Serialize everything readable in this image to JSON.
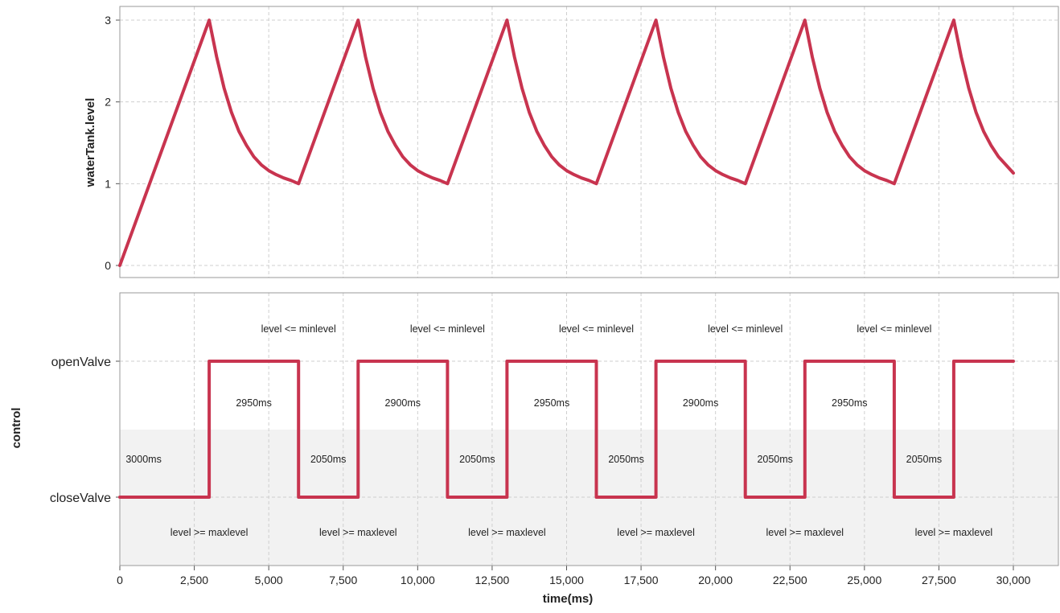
{
  "chart_data": [
    {
      "type": "line",
      "ylabel": "waterTank.level",
      "xlabel": "",
      "xlim": [
        0,
        30000
      ],
      "ylim": [
        0,
        3
      ],
      "yticks": [
        "0",
        "1",
        "2",
        "3"
      ],
      "grid": true,
      "series": [
        {
          "color": "#c8344f",
          "x": [
            0,
            3000,
            3250,
            3500,
            3750,
            4000,
            4250,
            4500,
            4750,
            5000,
            5250,
            5500,
            5750,
            6000,
            8000,
            8250,
            8500,
            8750,
            9000,
            9250,
            9500,
            9750,
            10000,
            10250,
            10500,
            10750,
            11000,
            13000,
            13250,
            13500,
            13750,
            14000,
            14250,
            14500,
            14750,
            15000,
            15250,
            15500,
            15750,
            16000,
            18000,
            18250,
            18500,
            18750,
            19000,
            19250,
            19500,
            19750,
            20000,
            20250,
            20500,
            20750,
            21000,
            23000,
            23250,
            23500,
            23750,
            24000,
            24250,
            24500,
            24750,
            25000,
            25250,
            25500,
            25750,
            26000,
            28000,
            28250,
            28500,
            28750,
            29000,
            29250,
            29500,
            29750,
            30000
          ],
          "y": [
            0,
            3.0,
            2.55,
            2.17,
            1.87,
            1.64,
            1.47,
            1.33,
            1.23,
            1.16,
            1.11,
            1.07,
            1.04,
            1.0,
            3.0,
            2.55,
            2.17,
            1.87,
            1.64,
            1.47,
            1.33,
            1.23,
            1.16,
            1.11,
            1.07,
            1.04,
            1.0,
            3.0,
            2.55,
            2.17,
            1.87,
            1.64,
            1.47,
            1.33,
            1.23,
            1.16,
            1.11,
            1.07,
            1.04,
            1.0,
            3.0,
            2.55,
            2.17,
            1.87,
            1.64,
            1.47,
            1.33,
            1.23,
            1.16,
            1.11,
            1.07,
            1.04,
            1.0,
            3.0,
            2.55,
            2.17,
            1.87,
            1.64,
            1.47,
            1.33,
            1.23,
            1.16,
            1.11,
            1.07,
            1.04,
            1.0,
            3.0,
            2.55,
            2.17,
            1.87,
            1.64,
            1.47,
            1.33,
            1.23,
            1.13
          ]
        }
      ]
    },
    {
      "type": "line",
      "step": true,
      "ylabel": "control",
      "xlabel": "time(ms)",
      "xlim": [
        0,
        30000
      ],
      "xticks": [
        0,
        2500,
        5000,
        7500,
        10000,
        12500,
        15000,
        17500,
        20000,
        22500,
        25000,
        27500,
        30000
      ],
      "xtick_labels": [
        "0",
        "2,500",
        "5,000",
        "7,500",
        "10,000",
        "12,500",
        "15,000",
        "17,500",
        "20,000",
        "22,500",
        "25,000",
        "27,500",
        "30,000"
      ],
      "categories": [
        "closeValve",
        "openValve"
      ],
      "grid": true,
      "series": [
        {
          "color": "#c8344f",
          "x": [
            0,
            3000,
            3000,
            6000,
            6000,
            8000,
            8000,
            11000,
            11000,
            13000,
            13000,
            16000,
            16000,
            18000,
            18000,
            21000,
            21000,
            23000,
            23000,
            26000,
            26000,
            28000,
            28000,
            30000
          ],
          "y": [
            "closeValve",
            "closeValve",
            "openValve",
            "openValve",
            "closeValve",
            "closeValve",
            "openValve",
            "openValve",
            "closeValve",
            "closeValve",
            "openValve",
            "openValve",
            "closeValve",
            "closeValve",
            "openValve",
            "openValve",
            "closeValve",
            "closeValve",
            "openValve",
            "openValve",
            "closeValve",
            "closeValve",
            "openValve",
            "openValve"
          ]
        }
      ],
      "annotations": [
        {
          "text": "3000ms",
          "x": 800,
          "level": "duration-close"
        },
        {
          "text": "2950ms",
          "x": 4500,
          "level": "duration-open"
        },
        {
          "text": "2050ms",
          "x": 7000,
          "level": "duration-close"
        },
        {
          "text": "2900ms",
          "x": 9500,
          "level": "duration-open"
        },
        {
          "text": "2050ms",
          "x": 12000,
          "level": "duration-close"
        },
        {
          "text": "2950ms",
          "x": 14500,
          "level": "duration-open"
        },
        {
          "text": "2050ms",
          "x": 17000,
          "level": "duration-close"
        },
        {
          "text": "2900ms",
          "x": 19500,
          "level": "duration-open"
        },
        {
          "text": "2050ms",
          "x": 22000,
          "level": "duration-close"
        },
        {
          "text": "2950ms",
          "x": 24500,
          "level": "duration-open"
        },
        {
          "text": "2050ms",
          "x": 27000,
          "level": "duration-close"
        },
        {
          "text": "level <= minlevel",
          "x": 6000,
          "level": "above-open"
        },
        {
          "text": "level <= minlevel",
          "x": 11000,
          "level": "above-open"
        },
        {
          "text": "level <= minlevel",
          "x": 16000,
          "level": "above-open"
        },
        {
          "text": "level <= minlevel",
          "x": 21000,
          "level": "above-open"
        },
        {
          "text": "level <= minlevel",
          "x": 26000,
          "level": "above-open"
        },
        {
          "text": "level >= maxlevel",
          "x": 3000,
          "level": "below-close"
        },
        {
          "text": "level >= maxlevel",
          "x": 8000,
          "level": "below-close"
        },
        {
          "text": "level >= maxlevel",
          "x": 13000,
          "level": "below-close"
        },
        {
          "text": "level >= maxlevel",
          "x": 18000,
          "level": "below-close"
        },
        {
          "text": "level >= maxlevel",
          "x": 23000,
          "level": "below-close"
        },
        {
          "text": "level >= maxlevel",
          "x": 28000,
          "level": "below-close"
        }
      ]
    }
  ]
}
